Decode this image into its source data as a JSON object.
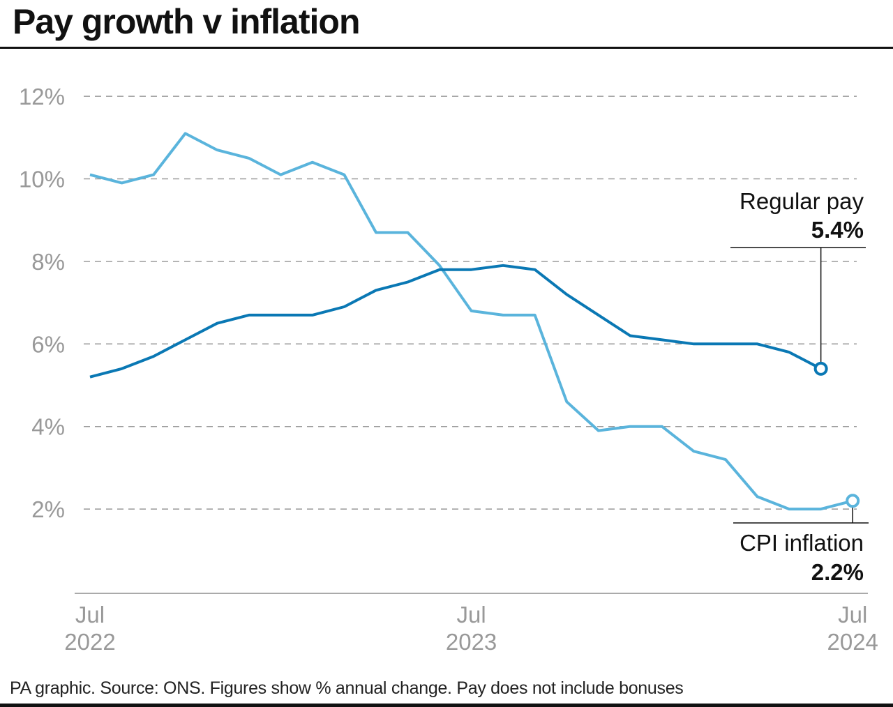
{
  "title": "Pay growth v inflation",
  "footer": "PA graphic. Source: ONS. Figures show % annual change. Pay does not include bonuses",
  "chart_data": {
    "type": "line",
    "title": "Pay growth v inflation",
    "ylim": [
      0,
      12
    ],
    "yticks": [
      2,
      4,
      6,
      8,
      10,
      12
    ],
    "ytick_labels": [
      "2%",
      "4%",
      "6%",
      "8%",
      "10%",
      "12%"
    ],
    "grid": true,
    "x_ticks": [
      {
        "month": "2022-07",
        "line1": "Jul",
        "line2": "2022"
      },
      {
        "month": "2023-07",
        "line1": "Jul",
        "line2": "2023"
      },
      {
        "month": "2024-07",
        "line1": "Jul",
        "line2": "2024"
      }
    ],
    "x": [
      "2022-07",
      "2022-08",
      "2022-09",
      "2022-10",
      "2022-11",
      "2022-12",
      "2023-01",
      "2023-02",
      "2023-03",
      "2023-04",
      "2023-05",
      "2023-06",
      "2023-07",
      "2023-08",
      "2023-09",
      "2023-10",
      "2023-11",
      "2023-12",
      "2024-01",
      "2024-02",
      "2024-03",
      "2024-04",
      "2024-05",
      "2024-06",
      "2024-07"
    ],
    "series": [
      {
        "name": "CPI inflation",
        "color": "#5ab4dc",
        "end_label": "2.2%",
        "values": [
          10.1,
          9.9,
          10.1,
          11.1,
          10.7,
          10.5,
          10.1,
          10.4,
          10.1,
          8.7,
          8.7,
          7.9,
          6.8,
          6.7,
          6.7,
          4.6,
          3.9,
          4.0,
          4.0,
          3.4,
          3.2,
          2.3,
          2.0,
          2.0,
          2.2
        ]
      },
      {
        "name": "Regular pay",
        "color": "#0a78b4",
        "end_label": "5.4%",
        "values": [
          5.2,
          5.4,
          5.7,
          6.1,
          6.5,
          6.7,
          6.7,
          6.7,
          6.9,
          7.3,
          7.5,
          7.8,
          7.8,
          7.9,
          7.8,
          7.2,
          6.7,
          6.2,
          6.1,
          6.0,
          6.0,
          6.0,
          5.8,
          5.4,
          null
        ]
      }
    ]
  }
}
